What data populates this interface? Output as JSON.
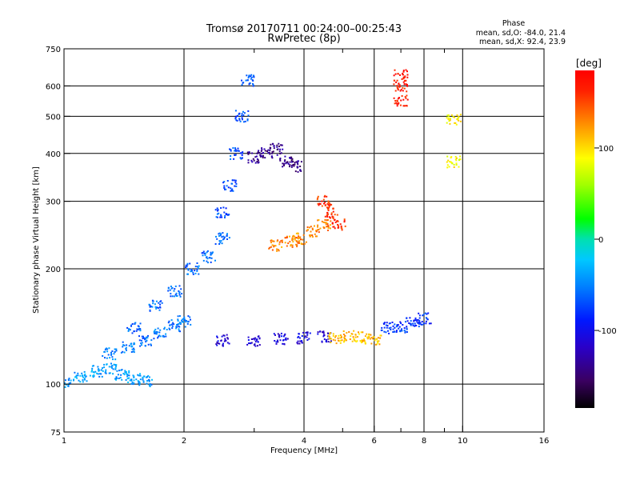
{
  "header": {
    "title_line1": "Tromsø 20170711 00:24:00–00:25:43",
    "title_line2": "RwPretec (8p)"
  },
  "stats": {
    "label": "Phase",
    "line1": "mean, sd,O: -84.0, 21.4",
    "line2": "mean, sd,X:  92.4, 23.9"
  },
  "colorbar": {
    "label": "[deg]",
    "ticks": [
      {
        "value": 100,
        "label": "100"
      },
      {
        "value": 0,
        "label": "0"
      },
      {
        "value": -100,
        "label": "-100"
      }
    ],
    "range": [
      -185,
      185
    ]
  },
  "chart_data": {
    "type": "scatter",
    "title": "Tromsø 20170711 00:24:00–00:25:43",
    "subtitle": "RwPretec (8p)",
    "xlabel": "Frequency [MHz]",
    "ylabel": "Stationary phase Virtual Height [km]",
    "xscale": "log",
    "yscale": "log",
    "xlim": [
      1,
      16
    ],
    "ylim": [
      75,
      750
    ],
    "xticks": [
      1,
      2,
      4,
      6,
      8,
      10,
      16
    ],
    "yticks": [
      75,
      100,
      200,
      300,
      400,
      500,
      600,
      750
    ],
    "minor_xticks": [
      3,
      5,
      7,
      9
    ],
    "grid": true,
    "color_variable": "Phase [deg]",
    "series": [
      {
        "x": [
          1.0,
          1.1,
          1.2,
          1.3,
          1.4,
          1.5,
          1.6
        ],
        "y": [
          101,
          104,
          108,
          110,
          106,
          103,
          102
        ],
        "phase": -40
      },
      {
        "x": [
          1.3,
          1.45,
          1.6,
          1.75,
          1.9,
          2.0
        ],
        "y": [
          120,
          125,
          130,
          136,
          142,
          146
        ],
        "phase": -55
      },
      {
        "x": [
          1.5,
          1.7,
          1.9,
          2.1,
          2.3,
          2.5
        ],
        "y": [
          140,
          160,
          175,
          200,
          215,
          240
        ],
        "phase": -60
      },
      {
        "x": [
          2.5,
          2.6,
          2.7,
          2.8,
          2.9
        ],
        "y": [
          280,
          330,
          400,
          500,
          620
        ],
        "phase": -70
      },
      {
        "x": [
          2.5,
          3.0,
          3.5,
          4.0,
          4.5
        ],
        "y": [
          130,
          130,
          131,
          132,
          133
        ],
        "phase": -110
      },
      {
        "x": [
          3.0,
          3.2,
          3.4,
          3.6,
          3.8
        ],
        "y": [
          390,
          400,
          410,
          380,
          370
        ],
        "phase": -140
      },
      {
        "x": [
          3.4,
          3.7,
          3.9,
          4.2,
          4.5
        ],
        "y": [
          230,
          235,
          240,
          250,
          260
        ],
        "phase": 130
      },
      {
        "x": [
          4.5,
          4.7,
          4.9
        ],
        "y": [
          300,
          280,
          260
        ],
        "phase": 160
      },
      {
        "x": [
          4.8,
          5.2,
          5.6,
          6.0
        ],
        "y": [
          132,
          133,
          132,
          131
        ],
        "phase": 110
      },
      {
        "x": [
          6.5,
          7.0,
          7.5,
          8.0
        ],
        "y": [
          140,
          141,
          145,
          148
        ],
        "phase": -80
      },
      {
        "x": [
          7.0,
          7.0,
          7.0
        ],
        "y": [
          640,
          600,
          550
        ],
        "phase": 170
      },
      {
        "x": [
          9.5,
          9.5
        ],
        "y": [
          490,
          380
        ],
        "phase": 90
      }
    ]
  }
}
